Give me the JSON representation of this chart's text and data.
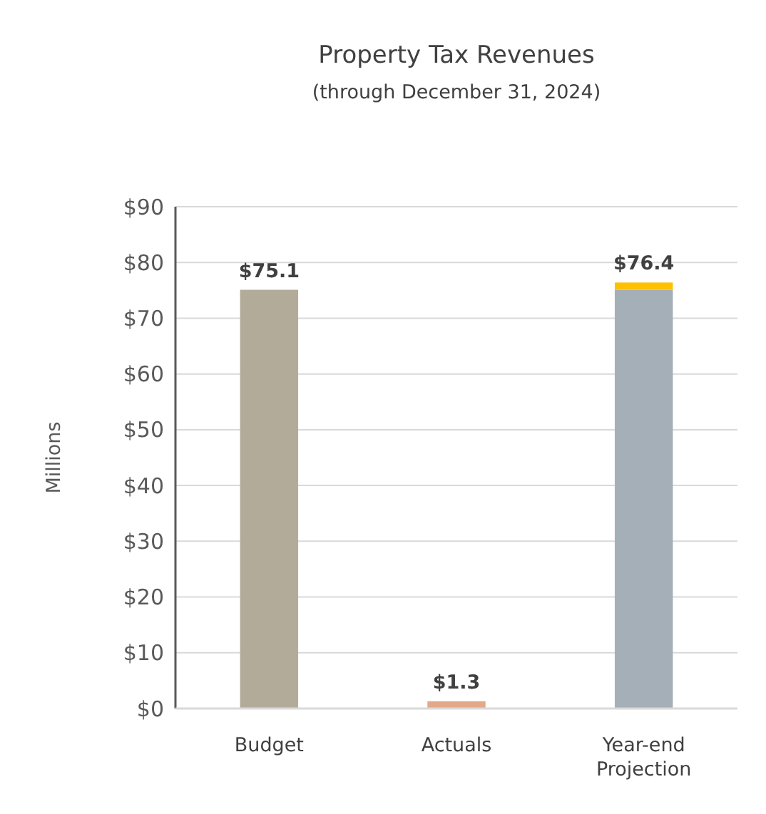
{
  "chart_data": {
    "type": "bar",
    "title": "Property Tax Revenues",
    "subtitle": "(through December 31, 2024)",
    "ylabel": "Millions",
    "categories": [
      "Budget",
      "Actuals",
      "Year-end Projection"
    ],
    "stacked": true,
    "series": [
      {
        "colors": [
          "#b3ab9a",
          "#e3a88a",
          "#a5afb7"
        ],
        "values": [
          75.1,
          1.3,
          75.1
        ]
      },
      {
        "color": "#ffc000",
        "values": [
          null,
          null,
          1.3
        ]
      }
    ],
    "totals": [
      "$75.1",
      "$1.3",
      "$76.4"
    ],
    "ylim": [
      0,
      90
    ],
    "yticks": [
      {
        "value": 0,
        "label": "$0"
      },
      {
        "value": 10,
        "label": "$10"
      },
      {
        "value": 20,
        "label": "$20"
      },
      {
        "value": 30,
        "label": "$30"
      },
      {
        "value": 40,
        "label": "$40"
      },
      {
        "value": 50,
        "label": "$50"
      },
      {
        "value": 60,
        "label": "$60"
      },
      {
        "value": 70,
        "label": "$70"
      },
      {
        "value": 80,
        "label": "$80"
      },
      {
        "value": 90,
        "label": "$90"
      }
    ],
    "grid": "y"
  }
}
